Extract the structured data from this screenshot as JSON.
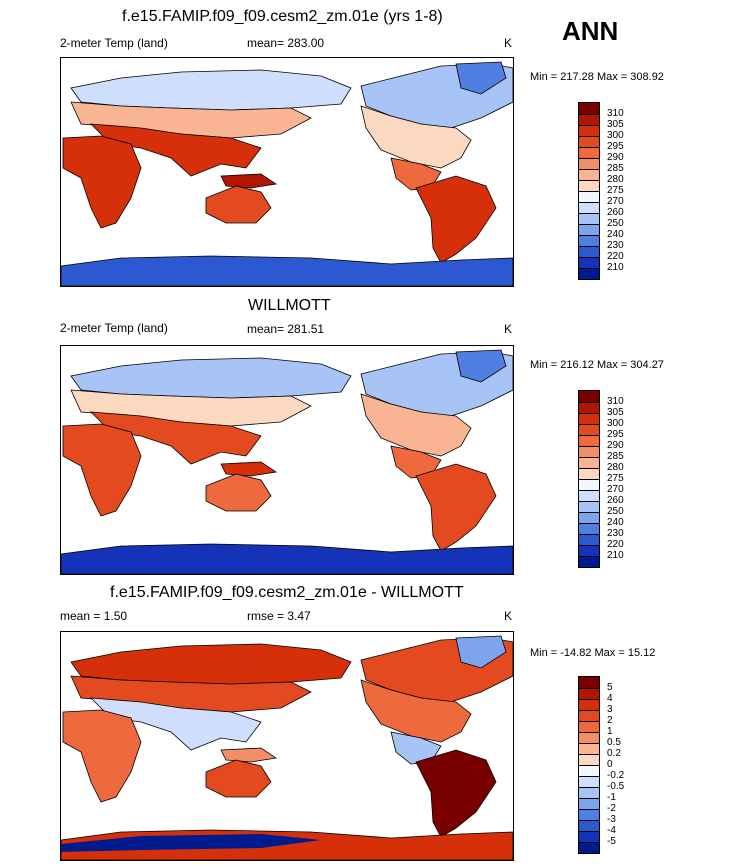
{
  "season": "ANN",
  "units": "K",
  "panels": [
    {
      "title": "f.e15.FAMIP.f09_f09.cesm2_zm.01e (yrs 1-8)",
      "variable": "2-meter Temp (land)",
      "stat": "mean= 283.00",
      "minmax": "Min = 217.28 Max = 308.92",
      "colorbar_labels": [
        "310",
        "305",
        "300",
        "295",
        "290",
        "285",
        "280",
        "275",
        "270",
        "260",
        "250",
        "240",
        "230",
        "220",
        "210"
      ],
      "palette": [
        "#7a0000",
        "#b31500",
        "#d6300a",
        "#e44a20",
        "#ee6a3e",
        "#f48e66",
        "#f8b493",
        "#fbd8c0",
        "#f3f7ff",
        "#cfdefc",
        "#a8c4f6",
        "#7da5ed",
        "#4f7fe0",
        "#2c58d1",
        "#1433b9",
        "#001b8e"
      ]
    },
    {
      "title": "WILLMOTT",
      "variable": "2-meter Temp (land)",
      "stat": "mean= 281.51",
      "minmax": "Min = 216.12 Max = 304.27",
      "colorbar_labels": [
        "310",
        "305",
        "300",
        "295",
        "290",
        "285",
        "280",
        "275",
        "270",
        "260",
        "250",
        "240",
        "230",
        "220",
        "210"
      ],
      "palette": [
        "#7a0000",
        "#b31500",
        "#d6300a",
        "#e44a20",
        "#ee6a3e",
        "#f48e66",
        "#f8b493",
        "#fbd8c0",
        "#f3f7ff",
        "#cfdefc",
        "#a8c4f6",
        "#7da5ed",
        "#4f7fe0",
        "#2c58d1",
        "#1433b9",
        "#001b8e"
      ]
    },
    {
      "title": "f.e15.FAMIP.f09_f09.cesm2_zm.01e - WILLMOTT",
      "variable": "mean =   1.50",
      "stat": "rmse =   3.47",
      "minmax": "Min = -14.82 Max =  15.12",
      "colorbar_labels": [
        "5",
        "4",
        "3",
        "2",
        "1",
        "0.5",
        "0.2",
        "0",
        "-0.2",
        "-0.5",
        "-1",
        "-2",
        "-3",
        "-4",
        "-5"
      ],
      "palette": [
        "#7a0000",
        "#b31500",
        "#d6300a",
        "#e44a20",
        "#ee6a3e",
        "#f48e66",
        "#f8b493",
        "#fbd8c0",
        "#f3f7ff",
        "#cfdefc",
        "#a8c4f6",
        "#7da5ed",
        "#4f7fe0",
        "#2c58d1",
        "#1433b9",
        "#001b8e"
      ]
    }
  ]
}
